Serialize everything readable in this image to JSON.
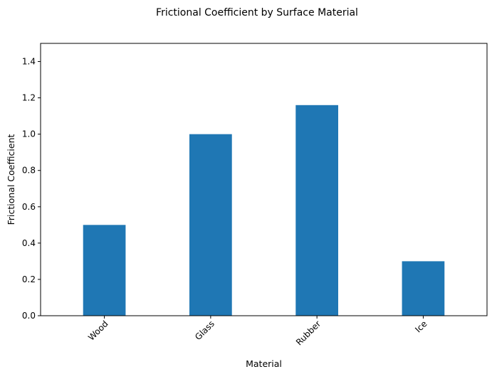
{
  "chart_data": {
    "type": "bar",
    "title": "Frictional Coefficient by Surface Material",
    "xlabel": "Material",
    "ylabel": "Frictional Coefficient",
    "categories": [
      "Wood",
      "Glass",
      "Rubber",
      "Ice"
    ],
    "values": [
      0.5,
      1.0,
      1.16,
      0.3
    ],
    "ylim": [
      0,
      1.5
    ],
    "yticks": [
      "0.0",
      "0.2",
      "0.4",
      "0.6",
      "0.8",
      "1.0",
      "1.2",
      "1.4"
    ],
    "grid": false,
    "legend": "none",
    "bar_color": "#1f77b4"
  }
}
